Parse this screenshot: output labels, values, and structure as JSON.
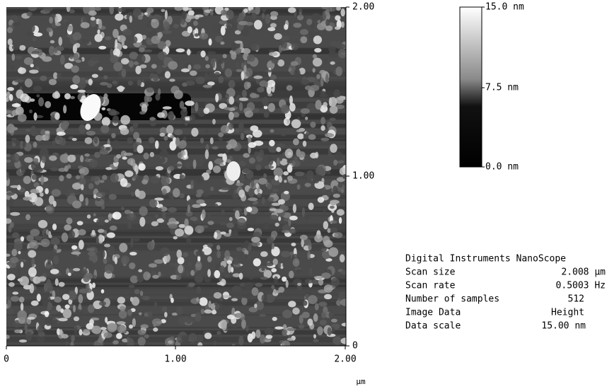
{
  "right_axis": {
    "ticks": [
      "2.00",
      "1.00",
      "0"
    ]
  },
  "bottom_axis": {
    "ticks": [
      "0",
      "1.00",
      "2.00"
    ],
    "unit": "µm"
  },
  "color_scale": {
    "labels": [
      "15.0 nm",
      "7.5 nm",
      "0.0 nm"
    ]
  },
  "info": {
    "title": "Digital Instruments NanoScope",
    "rows": [
      [
        "Scan size",
        "2.008 µm"
      ],
      [
        "Scan rate",
        "0.5003 Hz"
      ],
      [
        "Number of samples",
        "512"
      ],
      [
        "Image Data",
        "Height"
      ],
      [
        "Data scale",
        "15.00 nm"
      ]
    ]
  }
}
